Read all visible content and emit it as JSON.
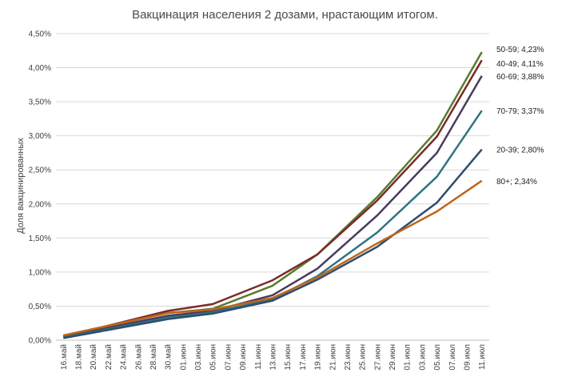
{
  "chart_data": {
    "type": "line",
    "title": "Вакцинация населения 2 дозами, нрастающим итогом.",
    "xlabel": "",
    "ylabel": "Доля вакцинированных",
    "ylim": [
      0,
      4.5
    ],
    "yticks": [
      "0,00%",
      "0,50%",
      "1,00%",
      "1,50%",
      "2,00%",
      "2,50%",
      "3,00%",
      "3,50%",
      "4,00%",
      "4,50%"
    ],
    "grid": true,
    "legend": "none",
    "categories": [
      "16.май",
      "18.май",
      "20.май",
      "22.май",
      "24.май",
      "26.май",
      "28.май",
      "30.май",
      "01.июн",
      "03.июн",
      "05.июн",
      "07.июн",
      "09.июн",
      "11.июн",
      "13.июн",
      "15.июн",
      "17.июн",
      "19.июн",
      "21.июн",
      "23.июн",
      "25.июн",
      "27.июн",
      "29.июн",
      "01.июл",
      "03.июл",
      "05.июл",
      "07.июл",
      "09.июл",
      "11.июл"
    ],
    "series": [
      {
        "name": "50-59",
        "label": "50-59; 4,23%",
        "color": "#5a7a2e",
        "points": [
          [
            0,
            0.06
          ],
          [
            7,
            0.4
          ],
          [
            10,
            0.46
          ],
          [
            14,
            0.8
          ],
          [
            17,
            1.26
          ],
          [
            21,
            2.1
          ],
          [
            25,
            3.08
          ],
          [
            28,
            4.23
          ]
        ]
      },
      {
        "name": "40-49",
        "label": "40-49; 4,11%",
        "color": "#7b2a2a",
        "points": [
          [
            0,
            0.05
          ],
          [
            7,
            0.43
          ],
          [
            10,
            0.53
          ],
          [
            14,
            0.88
          ],
          [
            17,
            1.26
          ],
          [
            21,
            2.05
          ],
          [
            25,
            2.99
          ],
          [
            28,
            4.11
          ]
        ]
      },
      {
        "name": "60-69",
        "label": "60-69; 3,88%",
        "color": "#4b3a5e",
        "points": [
          [
            0,
            0.05
          ],
          [
            7,
            0.36
          ],
          [
            10,
            0.43
          ],
          [
            14,
            0.66
          ],
          [
            17,
            1.05
          ],
          [
            21,
            1.83
          ],
          [
            25,
            2.75
          ],
          [
            28,
            3.88
          ]
        ]
      },
      {
        "name": "70-79",
        "label": "70-79; 3,37%",
        "color": "#2e7480",
        "points": [
          [
            0,
            0.04
          ],
          [
            7,
            0.33
          ],
          [
            10,
            0.41
          ],
          [
            14,
            0.6
          ],
          [
            17,
            0.94
          ],
          [
            21,
            1.58
          ],
          [
            25,
            2.4
          ],
          [
            28,
            3.37
          ]
        ]
      },
      {
        "name": "20-39",
        "label": "20-39; 2,80%",
        "color": "#2f4d6e",
        "points": [
          [
            0,
            0.03
          ],
          [
            7,
            0.31
          ],
          [
            10,
            0.39
          ],
          [
            14,
            0.58
          ],
          [
            17,
            0.89
          ],
          [
            21,
            1.37
          ],
          [
            25,
            2.02
          ],
          [
            28,
            2.8
          ]
        ]
      },
      {
        "name": "80+",
        "label": "80+; 2,34%",
        "color": "#c0651a",
        "points": [
          [
            0,
            0.07
          ],
          [
            7,
            0.4
          ],
          [
            10,
            0.45
          ],
          [
            14,
            0.62
          ],
          [
            17,
            0.92
          ],
          [
            21,
            1.42
          ],
          [
            25,
            1.89
          ],
          [
            28,
            2.34
          ]
        ]
      }
    ]
  }
}
